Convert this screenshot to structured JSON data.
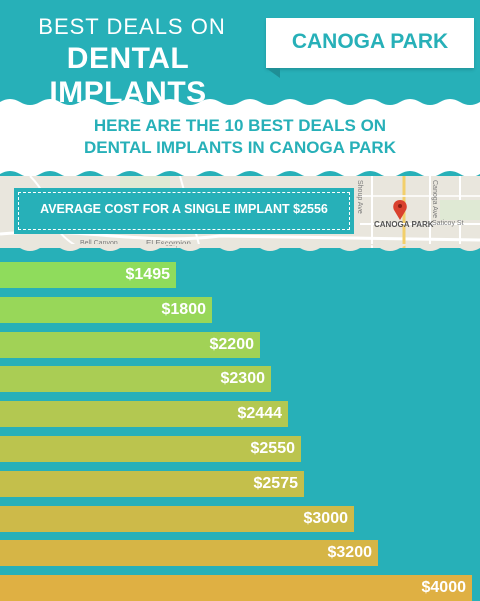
{
  "header": {
    "subtitle": "BEST DEALS ON",
    "title": "DENTAL IMPLANTS",
    "location": "CANOGA PARK"
  },
  "banner": {
    "line1": "HERE ARE THE 10 BEST DEALS ON",
    "line2": "DENTAL IMPLANTS IN CANOGA PARK"
  },
  "map": {
    "city_label": "CANOGA PARK",
    "street_labels": [
      "Shoup Ave",
      "Canoga Ave",
      "Saticoy St",
      "El Escorpion",
      "Bell Canyon"
    ]
  },
  "average": {
    "text": "AVERAGE COST FOR A SINGLE IMPLANT $2556"
  },
  "colors": {
    "teal": "#27b0b8",
    "green": "#8fdc5c",
    "gold": "#dfb043"
  },
  "chart_data": {
    "type": "bar",
    "orientation": "horizontal",
    "values": [
      1495,
      1800,
      2200,
      2300,
      2444,
      2550,
      2575,
      3000,
      3200,
      4000
    ],
    "labels": [
      "$1495",
      "$1800",
      "$2200",
      "$2300",
      "$2444",
      "$2550",
      "$2575",
      "$3000",
      "$3200",
      "$4000"
    ],
    "title": "",
    "xlabel": "",
    "ylabel": "",
    "grid": false,
    "legend": "none"
  }
}
